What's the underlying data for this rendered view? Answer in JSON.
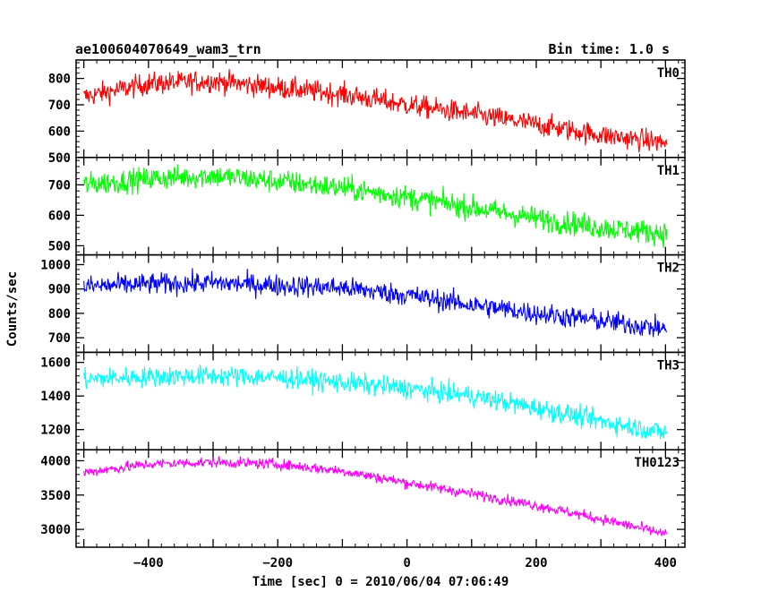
{
  "header": {
    "title": "ae100604070649_wam3_trn",
    "bin_time": "Bin time: 1.0 s"
  },
  "axes": {
    "xlabel": "Time [sec] 0 = 2010/06/04 07:06:49",
    "ylabel": "Counts/sec"
  },
  "chart_data": {
    "type": "line",
    "title": "ae100604070649_wam3_trn",
    "xlabel": "Time [sec] 0 = 2010/06/04 07:06:49",
    "ylabel": "Counts/sec",
    "xlim": [
      -512,
      430
    ],
    "x_ticks": [
      -400,
      -200,
      0,
      200,
      400
    ],
    "x_start": -500,
    "x_end": 402,
    "bin_time_s": 1.0,
    "panels": [
      {
        "name": "TH0",
        "color": "#ff0000",
        "ylim": [
          500,
          870
        ],
        "y_ticks": [
          500,
          600,
          700,
          800
        ],
        "noise": 38,
        "trend": [
          [
            -500,
            730
          ],
          [
            -400,
            780
          ],
          [
            -300,
            790
          ],
          [
            -200,
            765
          ],
          [
            -100,
            740
          ],
          [
            0,
            700
          ],
          [
            100,
            665
          ],
          [
            200,
            625
          ],
          [
            300,
            585
          ],
          [
            402,
            555
          ]
        ]
      },
      {
        "name": "TH1",
        "color": "#00ff00",
        "ylim": [
          470,
          790
        ],
        "y_ticks": [
          500,
          600,
          700
        ],
        "noise": 35,
        "trend": [
          [
            -500,
            700
          ],
          [
            -400,
            720
          ],
          [
            -300,
            730
          ],
          [
            -200,
            712
          ],
          [
            -100,
            690
          ],
          [
            0,
            660
          ],
          [
            100,
            625
          ],
          [
            200,
            590
          ],
          [
            300,
            560
          ],
          [
            402,
            540
          ]
        ]
      },
      {
        "name": "TH2",
        "color": "#0000ff",
        "ylim": [
          640,
          1040
        ],
        "y_ticks": [
          700,
          800,
          900,
          1000
        ],
        "noise": 40,
        "trend": [
          [
            -500,
            910
          ],
          [
            -400,
            920
          ],
          [
            -300,
            925
          ],
          [
            -200,
            915
          ],
          [
            -100,
            905
          ],
          [
            0,
            875
          ],
          [
            100,
            835
          ],
          [
            200,
            800
          ],
          [
            300,
            770
          ],
          [
            402,
            735
          ]
        ]
      },
      {
        "name": "TH3",
        "color": "#00ffff",
        "ylim": [
          1080,
          1660
        ],
        "y_ticks": [
          1200,
          1400,
          1600
        ],
        "noise": 55,
        "trend": [
          [
            -500,
            1500
          ],
          [
            -400,
            1515
          ],
          [
            -300,
            1520
          ],
          [
            -200,
            1510
          ],
          [
            -100,
            1480
          ],
          [
            0,
            1445
          ],
          [
            100,
            1400
          ],
          [
            200,
            1330
          ],
          [
            300,
            1250
          ],
          [
            402,
            1180
          ]
        ]
      },
      {
        "name": "TH0123",
        "color": "#ff00ff",
        "ylim": [
          2740,
          4160
        ],
        "y_ticks": [
          3000,
          3500,
          4000
        ],
        "noise": 70,
        "trend": [
          [
            -500,
            3830
          ],
          [
            -400,
            3950
          ],
          [
            -300,
            3980
          ],
          [
            -200,
            3950
          ],
          [
            -100,
            3850
          ],
          [
            0,
            3680
          ],
          [
            100,
            3520
          ],
          [
            200,
            3350
          ],
          [
            300,
            3150
          ],
          [
            402,
            2930
          ]
        ]
      }
    ]
  }
}
